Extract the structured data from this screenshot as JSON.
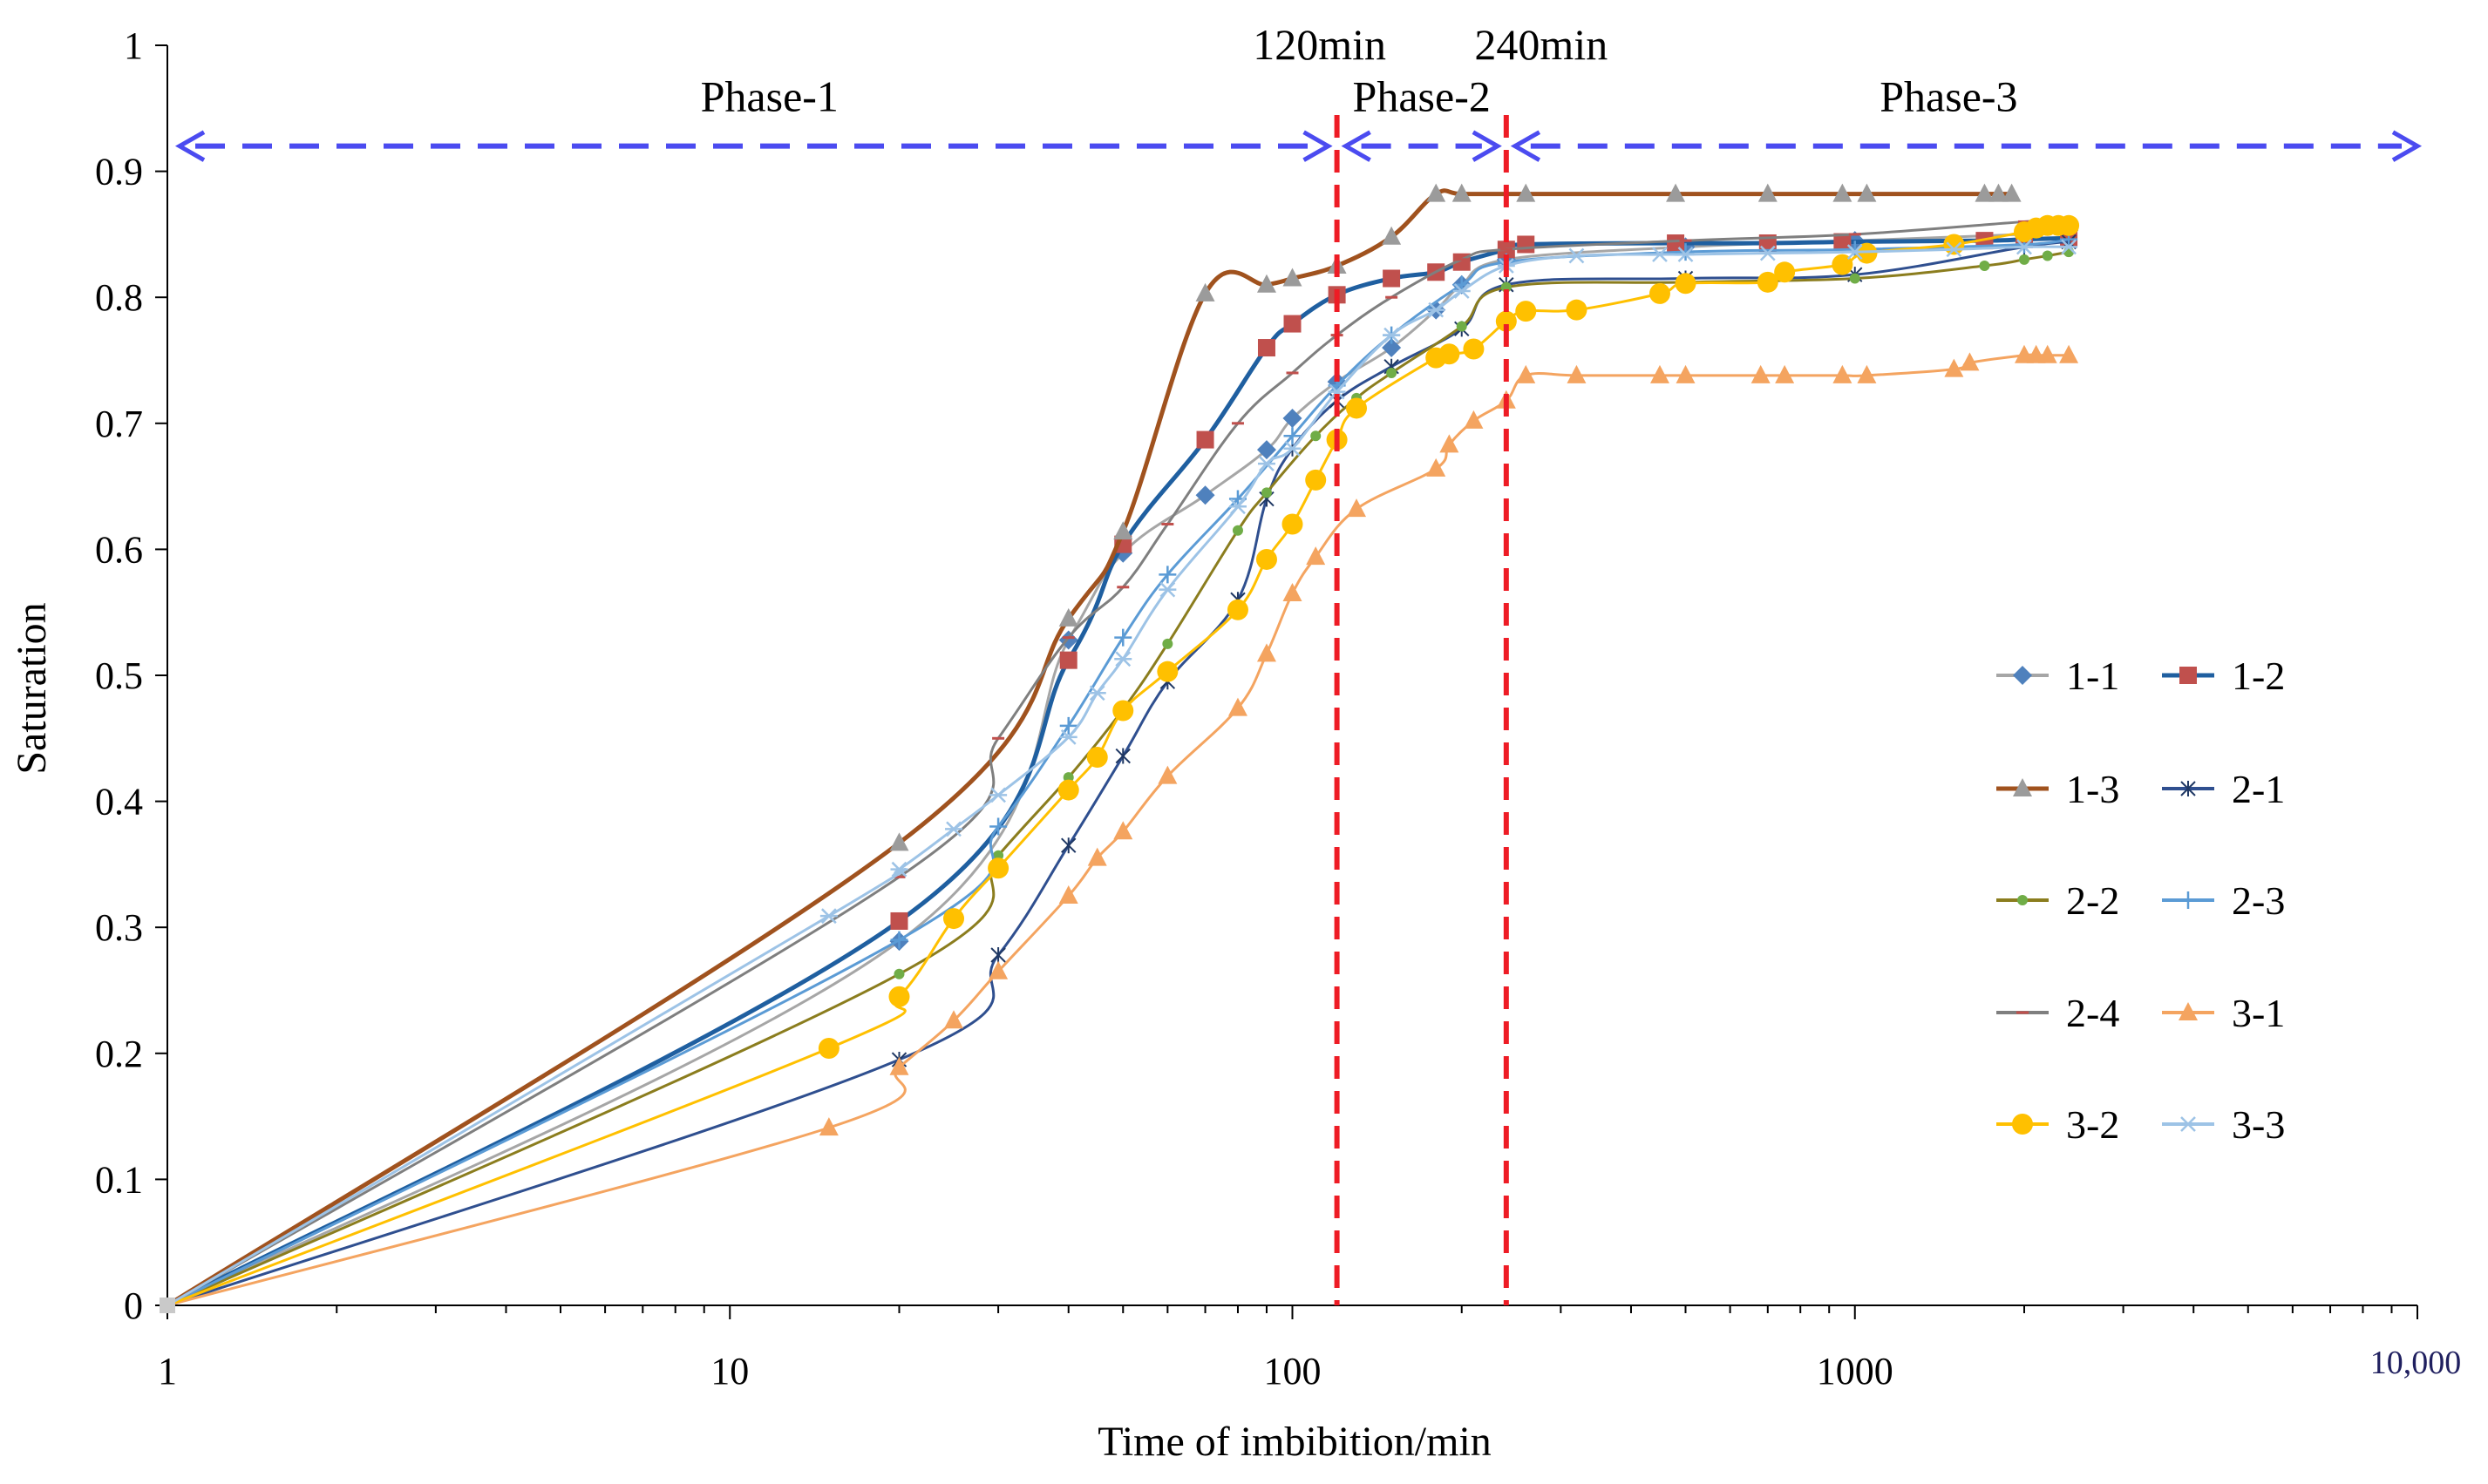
{
  "chart_data": {
    "type": "line",
    "xscale": "log",
    "xlabel": "Time of imbibition/min",
    "ylabel": "Saturation",
    "xlim": [
      1,
      10000
    ],
    "ylim": [
      0,
      1
    ],
    "x_ticks": [
      {
        "value": 1,
        "label": "1"
      },
      {
        "value": 10,
        "label": "10"
      },
      {
        "value": 100,
        "label": "100"
      },
      {
        "value": 1000,
        "label": "1000"
      },
      {
        "value": 10000,
        "label": "10,000"
      }
    ],
    "y_ticks": [
      {
        "value": 0,
        "label": "0"
      },
      {
        "value": 0.1,
        "label": "0.1"
      },
      {
        "value": 0.2,
        "label": "0.2"
      },
      {
        "value": 0.3,
        "label": "0.3"
      },
      {
        "value": 0.4,
        "label": "0.4"
      },
      {
        "value": 0.5,
        "label": "0.5"
      },
      {
        "value": 0.6,
        "label": "0.6"
      },
      {
        "value": 0.7,
        "label": "0.7"
      },
      {
        "value": 0.8,
        "label": "0.8"
      },
      {
        "value": 0.9,
        "label": "0.9"
      },
      {
        "value": 1,
        "label": "1"
      }
    ],
    "vlines": [
      {
        "x": 120,
        "label": "120min",
        "color": "#ee1c25"
      },
      {
        "x": 240,
        "label": "240min",
        "color": "#ee1c25"
      }
    ],
    "phase_arrow_color": "#4b4bf0",
    "phase_arrow_y": 0.92,
    "phases": [
      {
        "label": "Phase-1",
        "from": 1,
        "to": 120
      },
      {
        "label": "Phase-2",
        "from": 120,
        "to": 240
      },
      {
        "label": "Phase-3",
        "from": 240,
        "to": 10000
      }
    ],
    "series": [
      {
        "name": "1-1",
        "color": "#4f81bd",
        "line_color": "#a6a6a6",
        "marker": "diamond",
        "x": [
          1,
          20,
          40,
          50,
          70,
          90,
          100,
          120,
          150,
          180,
          200,
          240,
          500,
          1000,
          2000,
          2400
        ],
        "y": [
          0,
          0.289,
          0.528,
          0.597,
          0.643,
          0.679,
          0.704,
          0.733,
          0.76,
          0.79,
          0.81,
          0.83,
          0.84,
          0.845,
          0.85,
          0.853
        ]
      },
      {
        "name": "1-2",
        "color": "#c0504d",
        "line_color": "#1f5fa0",
        "marker": "square",
        "x": [
          1,
          20,
          40,
          50,
          70,
          90,
          100,
          120,
          150,
          180,
          200,
          240,
          260,
          480,
          700,
          950,
          1700,
          2000,
          2400
        ],
        "y": [
          0,
          0.305,
          0.512,
          0.604,
          0.687,
          0.76,
          0.779,
          0.802,
          0.815,
          0.82,
          0.828,
          0.838,
          0.842,
          0.843,
          0.843,
          0.844,
          0.845,
          0.846,
          0.847
        ]
      },
      {
        "name": "1-3",
        "color": "#9b9b9b",
        "line_color": "#a0521e",
        "marker": "triangle",
        "x": [
          1,
          20,
          40,
          50,
          70,
          90,
          100,
          120,
          150,
          180,
          200,
          260,
          480,
          700,
          950,
          1050,
          1700,
          1800,
          1900
        ],
        "y": [
          0,
          0.367,
          0.545,
          0.614,
          0.803,
          0.81,
          0.815,
          0.825,
          0.848,
          0.882,
          0.882,
          0.882,
          0.882,
          0.882,
          0.882,
          0.882,
          0.882,
          0.882,
          0.882
        ]
      },
      {
        "name": "2-1",
        "color": "#1f3864",
        "line_color": "#2f4f8f",
        "marker": "star",
        "x": [
          1,
          20,
          30,
          40,
          50,
          60,
          80,
          90,
          100,
          120,
          150,
          200,
          240,
          500,
          1000,
          2000,
          2400
        ],
        "y": [
          0,
          0.195,
          0.278,
          0.365,
          0.436,
          0.495,
          0.56,
          0.64,
          0.68,
          0.718,
          0.745,
          0.775,
          0.81,
          0.815,
          0.818,
          0.84,
          0.844
        ]
      },
      {
        "name": "2-2",
        "color": "#70ad47",
        "line_color": "#8b7d1e",
        "marker": "circle-small",
        "x": [
          1,
          20,
          30,
          40,
          50,
          60,
          80,
          90,
          110,
          130,
          150,
          200,
          240,
          500,
          1000,
          1700,
          2000,
          2200,
          2400
        ],
        "y": [
          0,
          0.263,
          0.357,
          0.419,
          0.473,
          0.525,
          0.615,
          0.645,
          0.69,
          0.72,
          0.74,
          0.777,
          0.808,
          0.812,
          0.815,
          0.825,
          0.83,
          0.833,
          0.836
        ]
      },
      {
        "name": "2-3",
        "color": "#5b9bd5",
        "line_color": "#5b9bd5",
        "marker": "plus",
        "x": [
          1,
          20,
          30,
          40,
          50,
          60,
          80,
          100,
          120,
          150,
          200,
          240,
          500,
          1000,
          2000,
          2400
        ],
        "y": [
          0,
          0.29,
          0.38,
          0.46,
          0.53,
          0.58,
          0.64,
          0.69,
          0.73,
          0.77,
          0.81,
          0.828,
          0.836,
          0.838,
          0.842,
          0.846
        ]
      },
      {
        "name": "2-4",
        "color": "#c0504d",
        "line_color": "#7f7f7f",
        "marker": "dash",
        "x": [
          1,
          20,
          30,
          40,
          50,
          60,
          80,
          100,
          120,
          150,
          200,
          240,
          500,
          1000,
          2000,
          2400
        ],
        "y": [
          0,
          0.34,
          0.45,
          0.53,
          0.57,
          0.62,
          0.7,
          0.74,
          0.77,
          0.8,
          0.83,
          0.838,
          0.845,
          0.85,
          0.86,
          0.862
        ]
      },
      {
        "name": "3-1",
        "color": "#f4a460",
        "line_color": "#f4a460",
        "marker": "triangle",
        "x": [
          1,
          15,
          20,
          25,
          30,
          40,
          45,
          50,
          60,
          80,
          90,
          100,
          110,
          130,
          180,
          190,
          210,
          240,
          260,
          320,
          450,
          500,
          680,
          750,
          950,
          1050,
          1500,
          1600,
          2000,
          2100,
          2200,
          2400
        ],
        "y": [
          0,
          0.141,
          0.189,
          0.226,
          0.265,
          0.325,
          0.355,
          0.376,
          0.42,
          0.474,
          0.517,
          0.565,
          0.594,
          0.632,
          0.664,
          0.683,
          0.702,
          0.718,
          0.738,
          0.738,
          0.738,
          0.738,
          0.738,
          0.738,
          0.738,
          0.738,
          0.743,
          0.748,
          0.754,
          0.754,
          0.754,
          0.754
        ]
      },
      {
        "name": "3-2",
        "color": "#ffc000",
        "line_color": "#ffc000",
        "marker": "circle",
        "x": [
          1,
          15,
          20,
          25,
          30,
          40,
          45,
          50,
          60,
          80,
          90,
          100,
          110,
          120,
          130,
          180,
          190,
          210,
          240,
          260,
          320,
          450,
          500,
          700,
          750,
          950,
          1050,
          1500,
          2000,
          2100,
          2200,
          2300,
          2400
        ],
        "y": [
          0,
          0.204,
          0.245,
          0.307,
          0.347,
          0.409,
          0.435,
          0.472,
          0.503,
          0.552,
          0.592,
          0.62,
          0.655,
          0.687,
          0.712,
          0.752,
          0.755,
          0.759,
          0.781,
          0.789,
          0.79,
          0.803,
          0.811,
          0.812,
          0.82,
          0.826,
          0.835,
          0.842,
          0.852,
          0.855,
          0.857,
          0.857,
          0.857
        ]
      },
      {
        "name": "3-3",
        "color": "#9dc3e6",
        "line_color": "#9dc3e6",
        "marker": "asterisk",
        "x": [
          1,
          15,
          20,
          25,
          30,
          40,
          45,
          50,
          60,
          80,
          90,
          100,
          120,
          150,
          180,
          200,
          240,
          320,
          450,
          500,
          700,
          1000,
          1500,
          2000,
          2400
        ],
        "y": [
          0,
          0.309,
          0.346,
          0.378,
          0.405,
          0.451,
          0.486,
          0.513,
          0.568,
          0.634,
          0.668,
          0.68,
          0.725,
          0.77,
          0.79,
          0.805,
          0.825,
          0.833,
          0.834,
          0.834,
          0.835,
          0.836,
          0.838,
          0.84,
          0.84
        ]
      }
    ]
  }
}
